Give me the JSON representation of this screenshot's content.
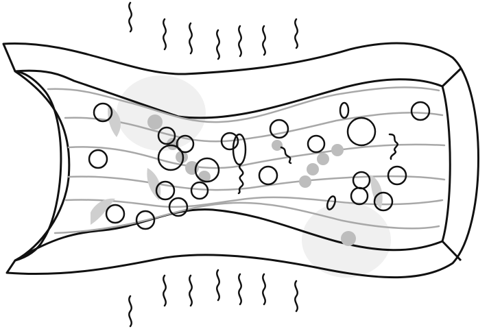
{
  "diagram": {
    "kind": "line-art",
    "colors": {
      "outline": "#111111",
      "flow_lines": "#a8a8a8",
      "particle_fill": "#bdbdbd",
      "shadow_fill": "#cfcfcf",
      "halo_fill": "#eeeeee",
      "background": "#ffffff"
    },
    "labels": []
  }
}
